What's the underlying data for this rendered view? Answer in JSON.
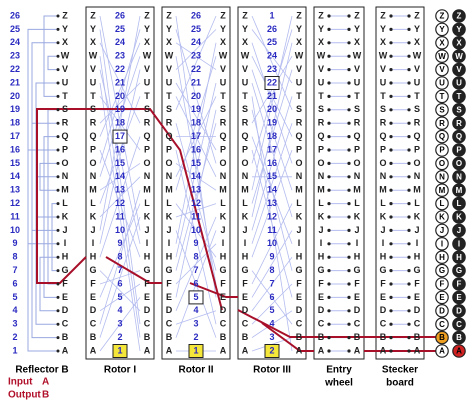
{
  "letters": [
    "A",
    "B",
    "C",
    "D",
    "E",
    "F",
    "G",
    "H",
    "I",
    "J",
    "K",
    "L",
    "M",
    "N",
    "O",
    "P",
    "Q",
    "R",
    "S",
    "T",
    "U",
    "V",
    "W",
    "X",
    "Y",
    "Z"
  ],
  "reflector": {
    "label": "Reflector B",
    "numbers": [
      1,
      2,
      3,
      4,
      5,
      6,
      7,
      8,
      9,
      10,
      11,
      12,
      13,
      14,
      15,
      16,
      17,
      18,
      19,
      20,
      21,
      22,
      23,
      24,
      25,
      26
    ]
  },
  "rotors": [
    {
      "label": "Rotor I",
      "numbers": [
        1,
        2,
        3,
        4,
        5,
        6,
        7,
        8,
        9,
        10,
        11,
        12,
        13,
        14,
        15,
        16,
        17,
        18,
        19,
        20,
        21,
        22,
        23,
        24,
        25,
        26
      ]
    },
    {
      "label": "Rotor II",
      "numbers": [
        1,
        2,
        3,
        4,
        5,
        6,
        7,
        8,
        9,
        10,
        11,
        12,
        13,
        14,
        15,
        16,
        17,
        18,
        19,
        20,
        21,
        22,
        23,
        24,
        25,
        26
      ]
    },
    {
      "label": "Rotor III",
      "numbers": [
        2,
        3,
        4,
        5,
        6,
        7,
        8,
        9,
        10,
        11,
        12,
        13,
        14,
        15,
        16,
        17,
        18,
        19,
        20,
        21,
        22,
        23,
        24,
        25,
        26,
        1
      ]
    }
  ],
  "entry_wheel": {
    "label": [
      "Entry",
      "wheel"
    ]
  },
  "stecker_board": {
    "label": [
      "Stecker",
      "board"
    ]
  },
  "legend": {
    "input_label": "Input",
    "input_letter": "A",
    "output_label": "Output",
    "output_letter": "B"
  }
}
